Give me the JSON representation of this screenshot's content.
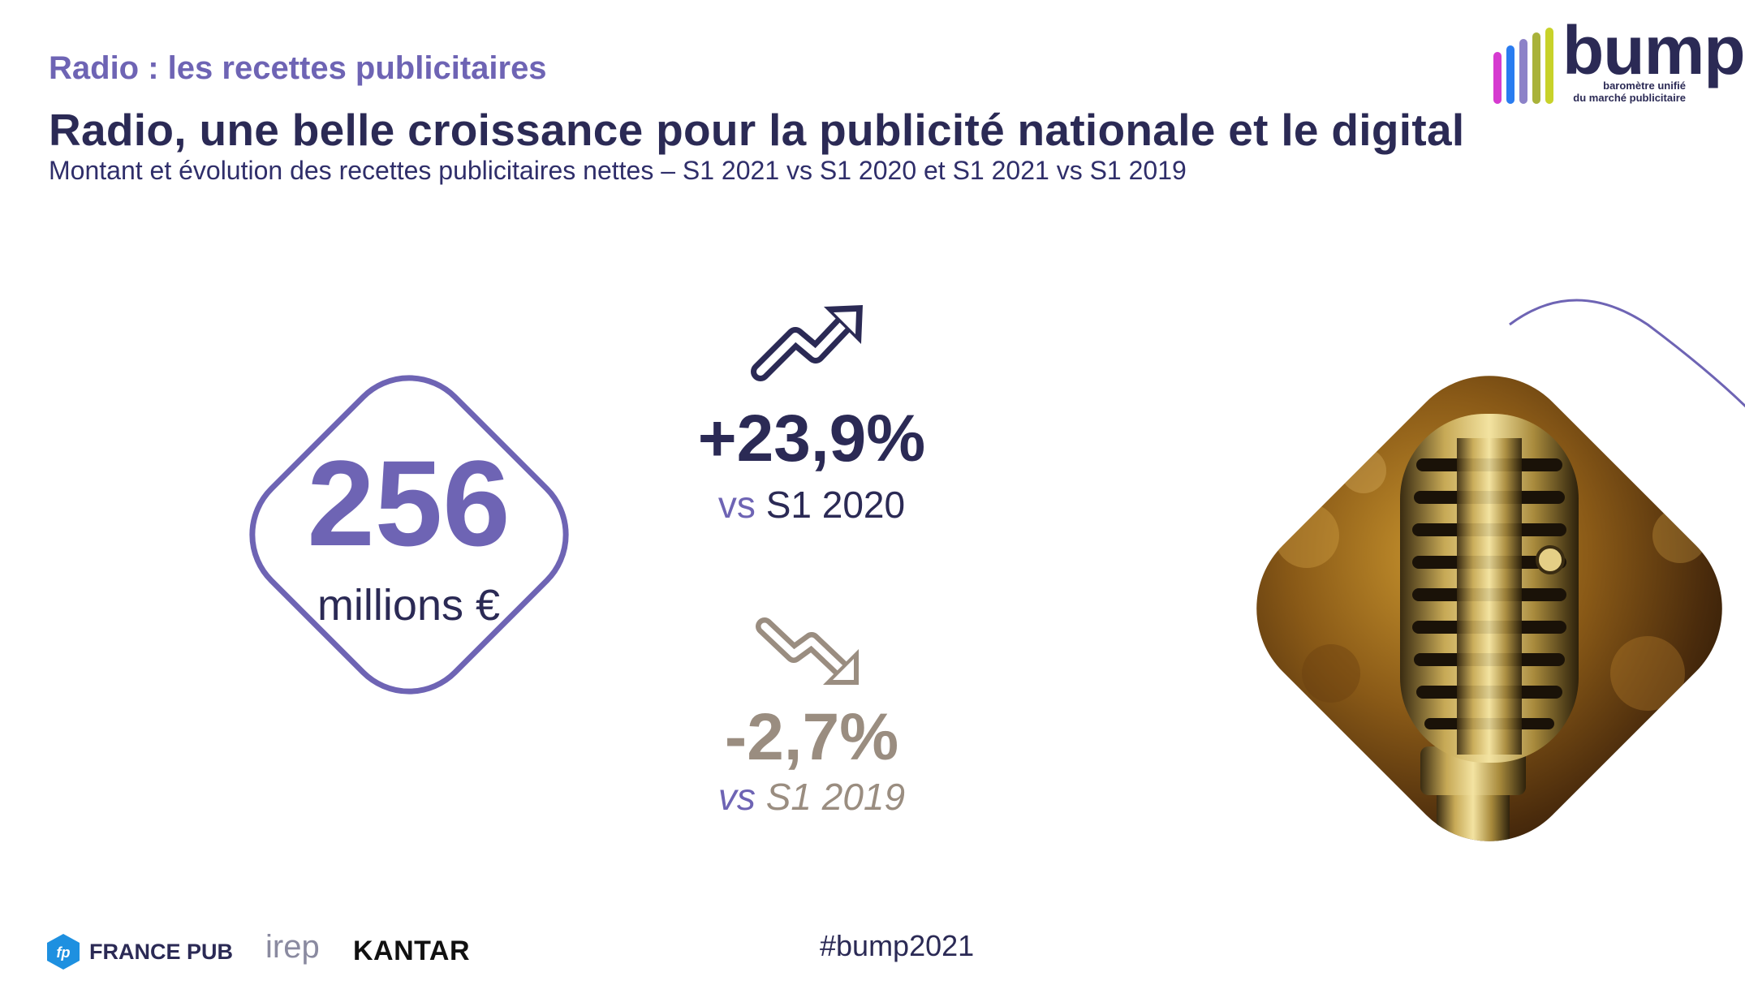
{
  "header": {
    "section_title": "Radio : les recettes publicitaires",
    "headline": "Radio, une belle croissance pour la publicité nationale et le digital",
    "subtitle": "Montant et évolution des recettes publicitaires nettes – S1 2021 vs S1 2020 et S1 2021 vs S1 2019"
  },
  "brand": {
    "name": "bump",
    "tagline_1": "baromètre unifié",
    "tagline_2": "du marché publicitaire",
    "bar_colors": [
      "#d63ad0",
      "#2a7cf0",
      "#8c82c8",
      "#a9b23a",
      "#c8d22a"
    ]
  },
  "kpi": {
    "amount": "256",
    "unit": "millions €"
  },
  "growth": {
    "up": {
      "value": "+23,9%",
      "vs_label": "vs",
      "vs_year": "S1 2020",
      "icon": "trend-up-icon"
    },
    "down": {
      "value": "-2,7%",
      "vs_label": "vs",
      "vs_year": "S1 2019",
      "icon": "trend-down-icon"
    }
  },
  "footer": {
    "partner_1": "FRANCE PUB",
    "partner_1_badge": "fp",
    "partner_2": "irep",
    "partner_3": "KANTAR",
    "hashtag": "#bump2021"
  },
  "colors": {
    "primary": "#6e64b4",
    "dark": "#2b2a55",
    "muted": "#9a8d80"
  }
}
